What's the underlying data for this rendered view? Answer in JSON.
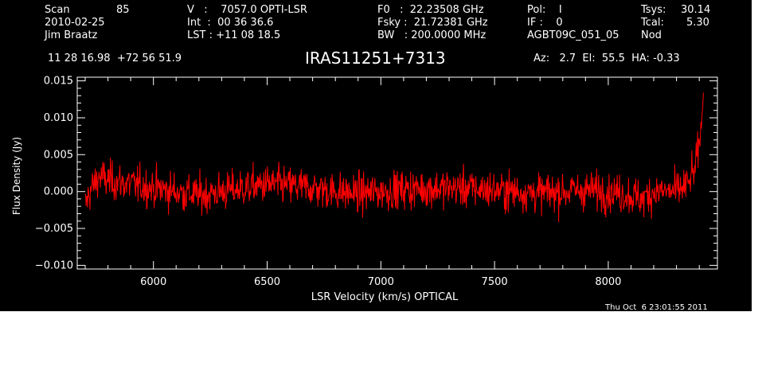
{
  "header": {
    "scan_label": "Scan",
    "scan_value": "85",
    "date": "2010-02-25",
    "observer": "Jim Braatz",
    "v_row": "V   :    7057.0 OPTI-LSR",
    "int_row": "Int  :  00 36 36.6",
    "lst_row": "LST : +11 08 18.5",
    "f0_row": "F0   :  22.23508 GHz",
    "fsky_row": "Fsky :  21.72381 GHz",
    "bw_row": "BW   : 200.0000 MHz",
    "pol_row": "Pol:    I",
    "if_row": "IF :    0",
    "project": "AGBT09C_051_05",
    "tsys_label": "Tsys:",
    "tsys_value": "30.14",
    "tcal_label": "Tcal:",
    "tcal_value": "5.30",
    "mode": "Nod",
    "coords": "11 28 16.98  +72 56 51.9",
    "source": "IRAS11251+7313",
    "pointing": "Az:   2.7  El:  55.5  HA: -0.33"
  },
  "footer": {
    "timestamp": "Thu Oct  6 23:01:55 2011"
  },
  "colors": {
    "background": "#000000",
    "foreground": "#ffffff",
    "series": "#ff0000"
  },
  "chart_data": {
    "type": "line",
    "xlabel": "LSR Velocity (km/s) OPTICAL",
    "ylabel": "Flux Density (Jy)",
    "xlim": [
      5665,
      8480
    ],
    "ylim": [
      -0.0105,
      0.0155
    ],
    "xticks": [
      6000,
      6500,
      7000,
      7500,
      8000
    ],
    "xtick_labels": [
      "6000",
      "6500",
      "7000",
      "7500",
      "8000"
    ],
    "yticks": [
      -0.01,
      -0.005,
      0.0,
      0.005,
      0.01,
      0.015
    ],
    "ytick_labels": [
      "−0.010",
      "−0.005",
      "0.000",
      "0.005",
      "0.010",
      "0.015"
    ],
    "series": [
      {
        "style": "noisy spectrum, approximate trace",
        "x": [
          5700,
          5720,
          5740,
          5760,
          5800,
          5900,
          6000,
          6100,
          6200,
          6300,
          6400,
          6500,
          6600,
          6700,
          6800,
          6900,
          7000,
          7100,
          7200,
          7300,
          7400,
          7500,
          7600,
          7700,
          7800,
          7900,
          8000,
          8100,
          8150,
          8200,
          8300,
          8350,
          8380,
          8400,
          8410,
          8420
        ],
        "y": [
          -0.002,
          0.0,
          0.001,
          0.002,
          0.0015,
          0.001,
          0.0005,
          0.0,
          -0.0005,
          0.0,
          0.0005,
          0.001,
          0.0008,
          0.0005,
          0.0,
          -0.0003,
          0.0,
          0.0003,
          0.0004,
          0.0005,
          0.0004,
          0.0002,
          0.0,
          -0.0002,
          0.0,
          0.0002,
          0.0,
          -0.0005,
          -0.001,
          0.0,
          0.0,
          0.001,
          0.003,
          0.006,
          0.01,
          0.014
        ],
        "noise_sigma": 0.0022
      }
    ]
  }
}
